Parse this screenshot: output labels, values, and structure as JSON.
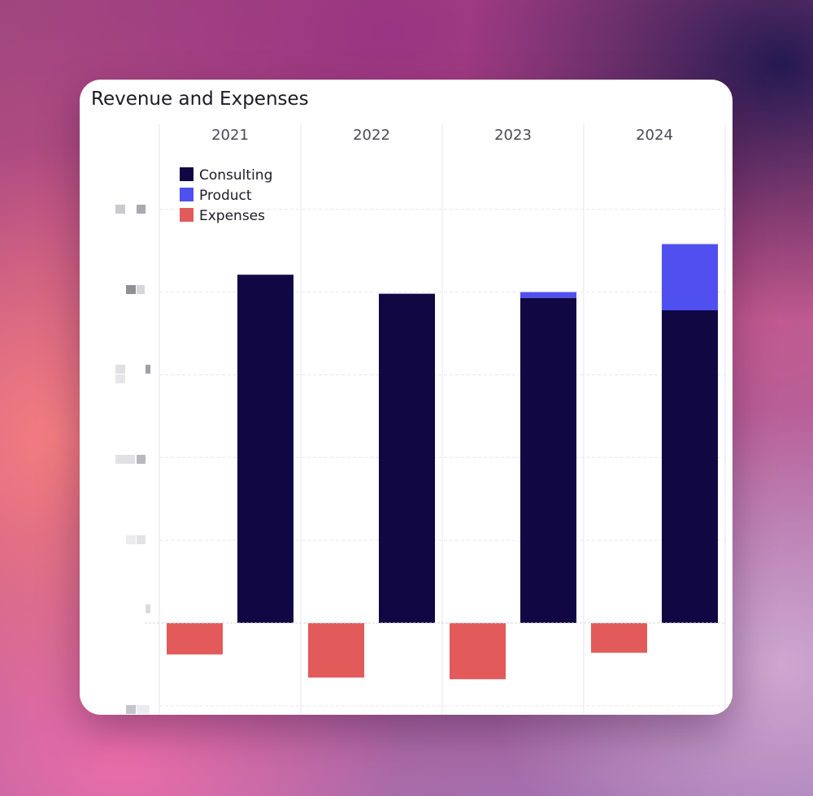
{
  "card": {
    "title": "Revenue and Expenses"
  },
  "chart_data": {
    "type": "bar",
    "title": "Revenue and Expenses",
    "categories": [
      "2021",
      "2022",
      "2023",
      "2024"
    ],
    "ylim": [
      -100,
      500
    ],
    "grid": true,
    "legend_position": "top-left",
    "series": [
      {
        "name": "Consulting",
        "color": "#110843",
        "stack": "revenue",
        "values": [
          421,
          398,
          393,
          378
        ]
      },
      {
        "name": "Product",
        "color": "#5050f0",
        "stack": "revenue",
        "values": [
          0,
          0,
          7,
          80
        ]
      },
      {
        "name": "Expenses",
        "color": "#e25a5a",
        "stack": "expenses",
        "values": [
          -38,
          -66,
          -68,
          -36
        ]
      }
    ]
  }
}
